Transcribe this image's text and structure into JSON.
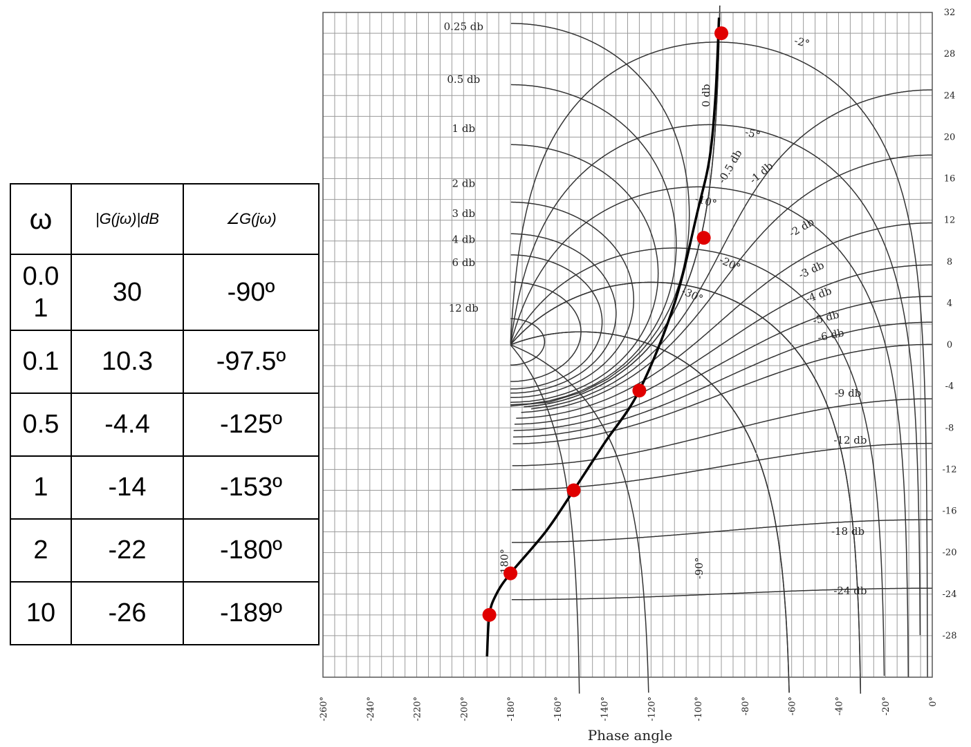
{
  "table": {
    "headers": {
      "omega": "ω",
      "magnitude": "|G(jω)|dB",
      "phase": "∠G(jω)"
    },
    "rows": [
      {
        "w": "0.01",
        "mag": "30",
        "phase": "-90º"
      },
      {
        "w": "0.1",
        "mag": "10.3",
        "phase": "-97.5º"
      },
      {
        "w": "0.5",
        "mag": "-4.4",
        "phase": "-125º"
      },
      {
        "w": "1",
        "mag": "-14",
        "phase": "-153º"
      },
      {
        "w": "2",
        "mag": "-22",
        "phase": "-180º"
      },
      {
        "w": "10",
        "mag": "-26",
        "phase": "-189º"
      }
    ]
  },
  "chart_data": {
    "type": "line",
    "title": "",
    "xlabel": "Phase angle",
    "ylabel": "",
    "xlim": [
      -260,
      0
    ],
    "ylim": [
      -32,
      32
    ],
    "x_ticks": [
      "-260°",
      "-240°",
      "-220°",
      "-200°",
      "-180°",
      "-160°",
      "-140°",
      "-120°",
      "-100°",
      "-80°",
      "-60°",
      "-40°",
      "-20°",
      "0°"
    ],
    "y_ticks": [
      "32",
      "28",
      "24",
      "20",
      "16",
      "12",
      "8",
      "4",
      "0",
      "-4",
      "-8",
      "-12",
      "-16",
      "-20",
      "-24",
      "-28"
    ],
    "series": [
      {
        "x": [
          -90,
          -97.5,
          -125,
          -153,
          -180,
          -189
        ],
        "y": [
          30,
          10.3,
          -4.4,
          -14,
          -22,
          -26
        ],
        "point_color": "#e00000",
        "line_color": "#000000"
      }
    ],
    "curve_x": [
      -91,
      -92.5,
      -95,
      -100,
      -110,
      -125,
      -140,
      -153,
      -165,
      -180,
      -186,
      -189,
      -190
    ],
    "curve_y": [
      31.5,
      24,
      18,
      13,
      4,
      -4.4,
      -9.5,
      -14,
      -18,
      -22,
      -24,
      -26,
      -30
    ],
    "m_contour_labels": [
      "0.25 db",
      "0.5 db",
      "1 db",
      "2 db",
      "3 db",
      "4 db",
      "6 db",
      "12 db",
      "0 db",
      "-0.5 db",
      "-1 db",
      "-2 db",
      "-3 db",
      "-4 db",
      "-5 db",
      "-6 db",
      "-9 db",
      "-12 db",
      "-18 db",
      "-24 db"
    ],
    "n_contour_labels": [
      "-2°",
      "-5°",
      "-10°",
      "-20°",
      "-30°",
      "-90°",
      "-180°"
    ]
  }
}
